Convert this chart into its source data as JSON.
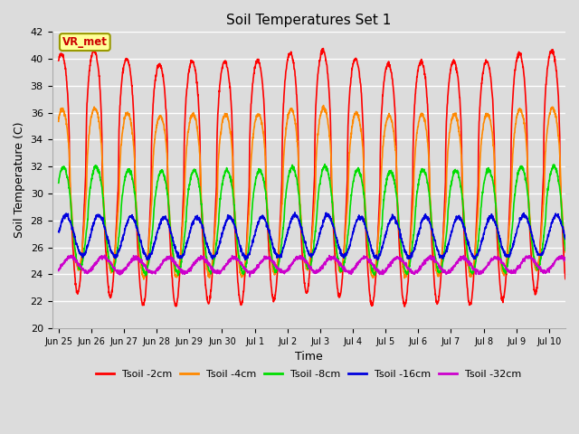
{
  "title": "Soil Temperatures Set 1",
  "xlabel": "Time",
  "ylabel": "Soil Temperature (C)",
  "ylim": [
    20,
    42
  ],
  "yticks": [
    20,
    22,
    24,
    26,
    28,
    30,
    32,
    34,
    36,
    38,
    40,
    42
  ],
  "background_color": "#dcdcdc",
  "plot_bg_color": "#dcdcdc",
  "grid_color": "#ffffff",
  "annotation_text": "VR_met",
  "annotation_bg": "#ffff99",
  "annotation_border": "#999900",
  "annotation_text_color": "#cc0000",
  "series": [
    {
      "label": "Tsoil -2cm",
      "color": "#ff0000",
      "lw": 1.2
    },
    {
      "label": "Tsoil -4cm",
      "color": "#ff8800",
      "lw": 1.2
    },
    {
      "label": "Tsoil -8cm",
      "color": "#00dd00",
      "lw": 1.2
    },
    {
      "label": "Tsoil -16cm",
      "color": "#0000dd",
      "lw": 1.2
    },
    {
      "label": "Tsoil -32cm",
      "color": "#cc00cc",
      "lw": 1.2
    }
  ],
  "x_tick_labels": [
    "Jun 25",
    "Jun 26",
    "Jun 27",
    "Jun 28",
    "Jun 29",
    "Jun 30",
    "Jul 1",
    "Jul 2",
    "Jul 3",
    "Jul 4",
    "Jul 5",
    "Jul 6",
    "Jul 7",
    "Jul 8",
    "Jul 9",
    "Jul 10"
  ],
  "n_days": 15.5,
  "points_per_day": 144
}
